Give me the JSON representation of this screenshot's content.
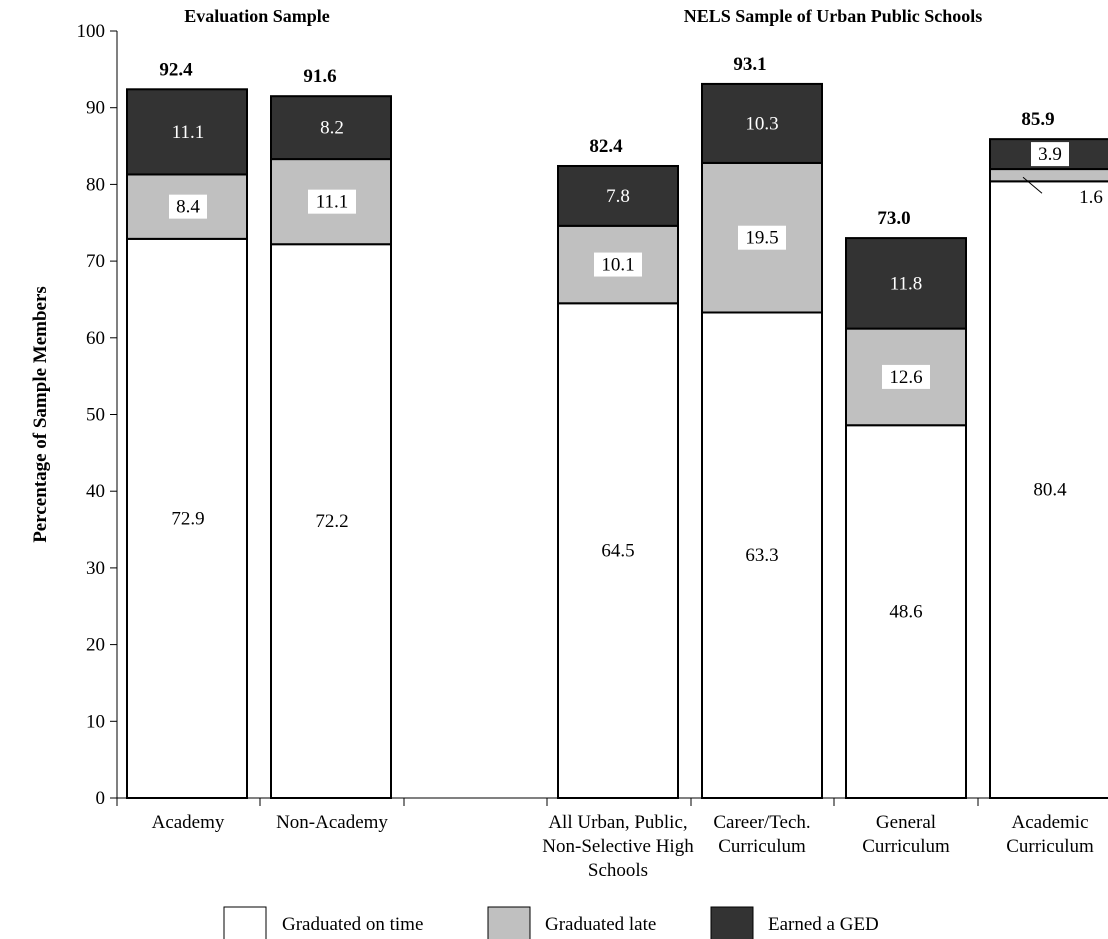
{
  "chart_data": {
    "type": "bar",
    "stacked": true,
    "groups": [
      {
        "title": "Evaluation Sample",
        "categories": [
          "Academy",
          "Non-Academy"
        ]
      },
      {
        "title": "NELS Sample of Urban Public Schools",
        "categories": [
          "All Urban, Public, Non-Selective High Schools",
          "Career/Tech. Curriculum",
          "General Curriculum",
          "Academic Curriculum"
        ]
      }
    ],
    "categories": [
      [
        "Academy"
      ],
      [
        "Non-Academy"
      ],
      [
        "All Urban, Public,",
        "Non-Selective High",
        "Schools"
      ],
      [
        "Career/Tech.",
        "Curriculum"
      ],
      [
        "General",
        "Curriculum"
      ],
      [
        "Academic",
        "Curriculum"
      ]
    ],
    "series": [
      {
        "name": "Graduated on time",
        "color": "#ffffff",
        "values": [
          72.9,
          72.2,
          64.5,
          63.3,
          48.6,
          80.4
        ]
      },
      {
        "name": "Graduated late",
        "color": "#c0c0c0",
        "values": [
          8.4,
          11.1,
          10.1,
          19.5,
          12.6,
          1.6
        ]
      },
      {
        "name": "Earned a GED",
        "color": "#333333",
        "values": [
          11.1,
          8.2,
          7.8,
          10.3,
          11.8,
          3.9
        ]
      }
    ],
    "totals": [
      "92.4",
      "91.6",
      "82.4",
      "93.1",
      "73.0",
      "85.9"
    ],
    "segment_labels": [
      [
        "72.9",
        "8.4",
        "11.1"
      ],
      [
        "72.2",
        "11.1",
        "8.2"
      ],
      [
        "64.5",
        "10.1",
        "7.8"
      ],
      [
        "63.3",
        "19.5",
        "10.3"
      ],
      [
        "48.6",
        "12.6",
        "11.8"
      ],
      [
        "80.4",
        "1.6",
        "3.9"
      ]
    ],
    "ylabel": "Percentage of Sample Members",
    "xlabel": "",
    "ylim": [
      0,
      100
    ],
    "yticks": [
      0,
      10,
      20,
      30,
      40,
      50,
      60,
      70,
      80,
      90,
      100
    ],
    "grid": false,
    "legend_position": "bottom"
  }
}
